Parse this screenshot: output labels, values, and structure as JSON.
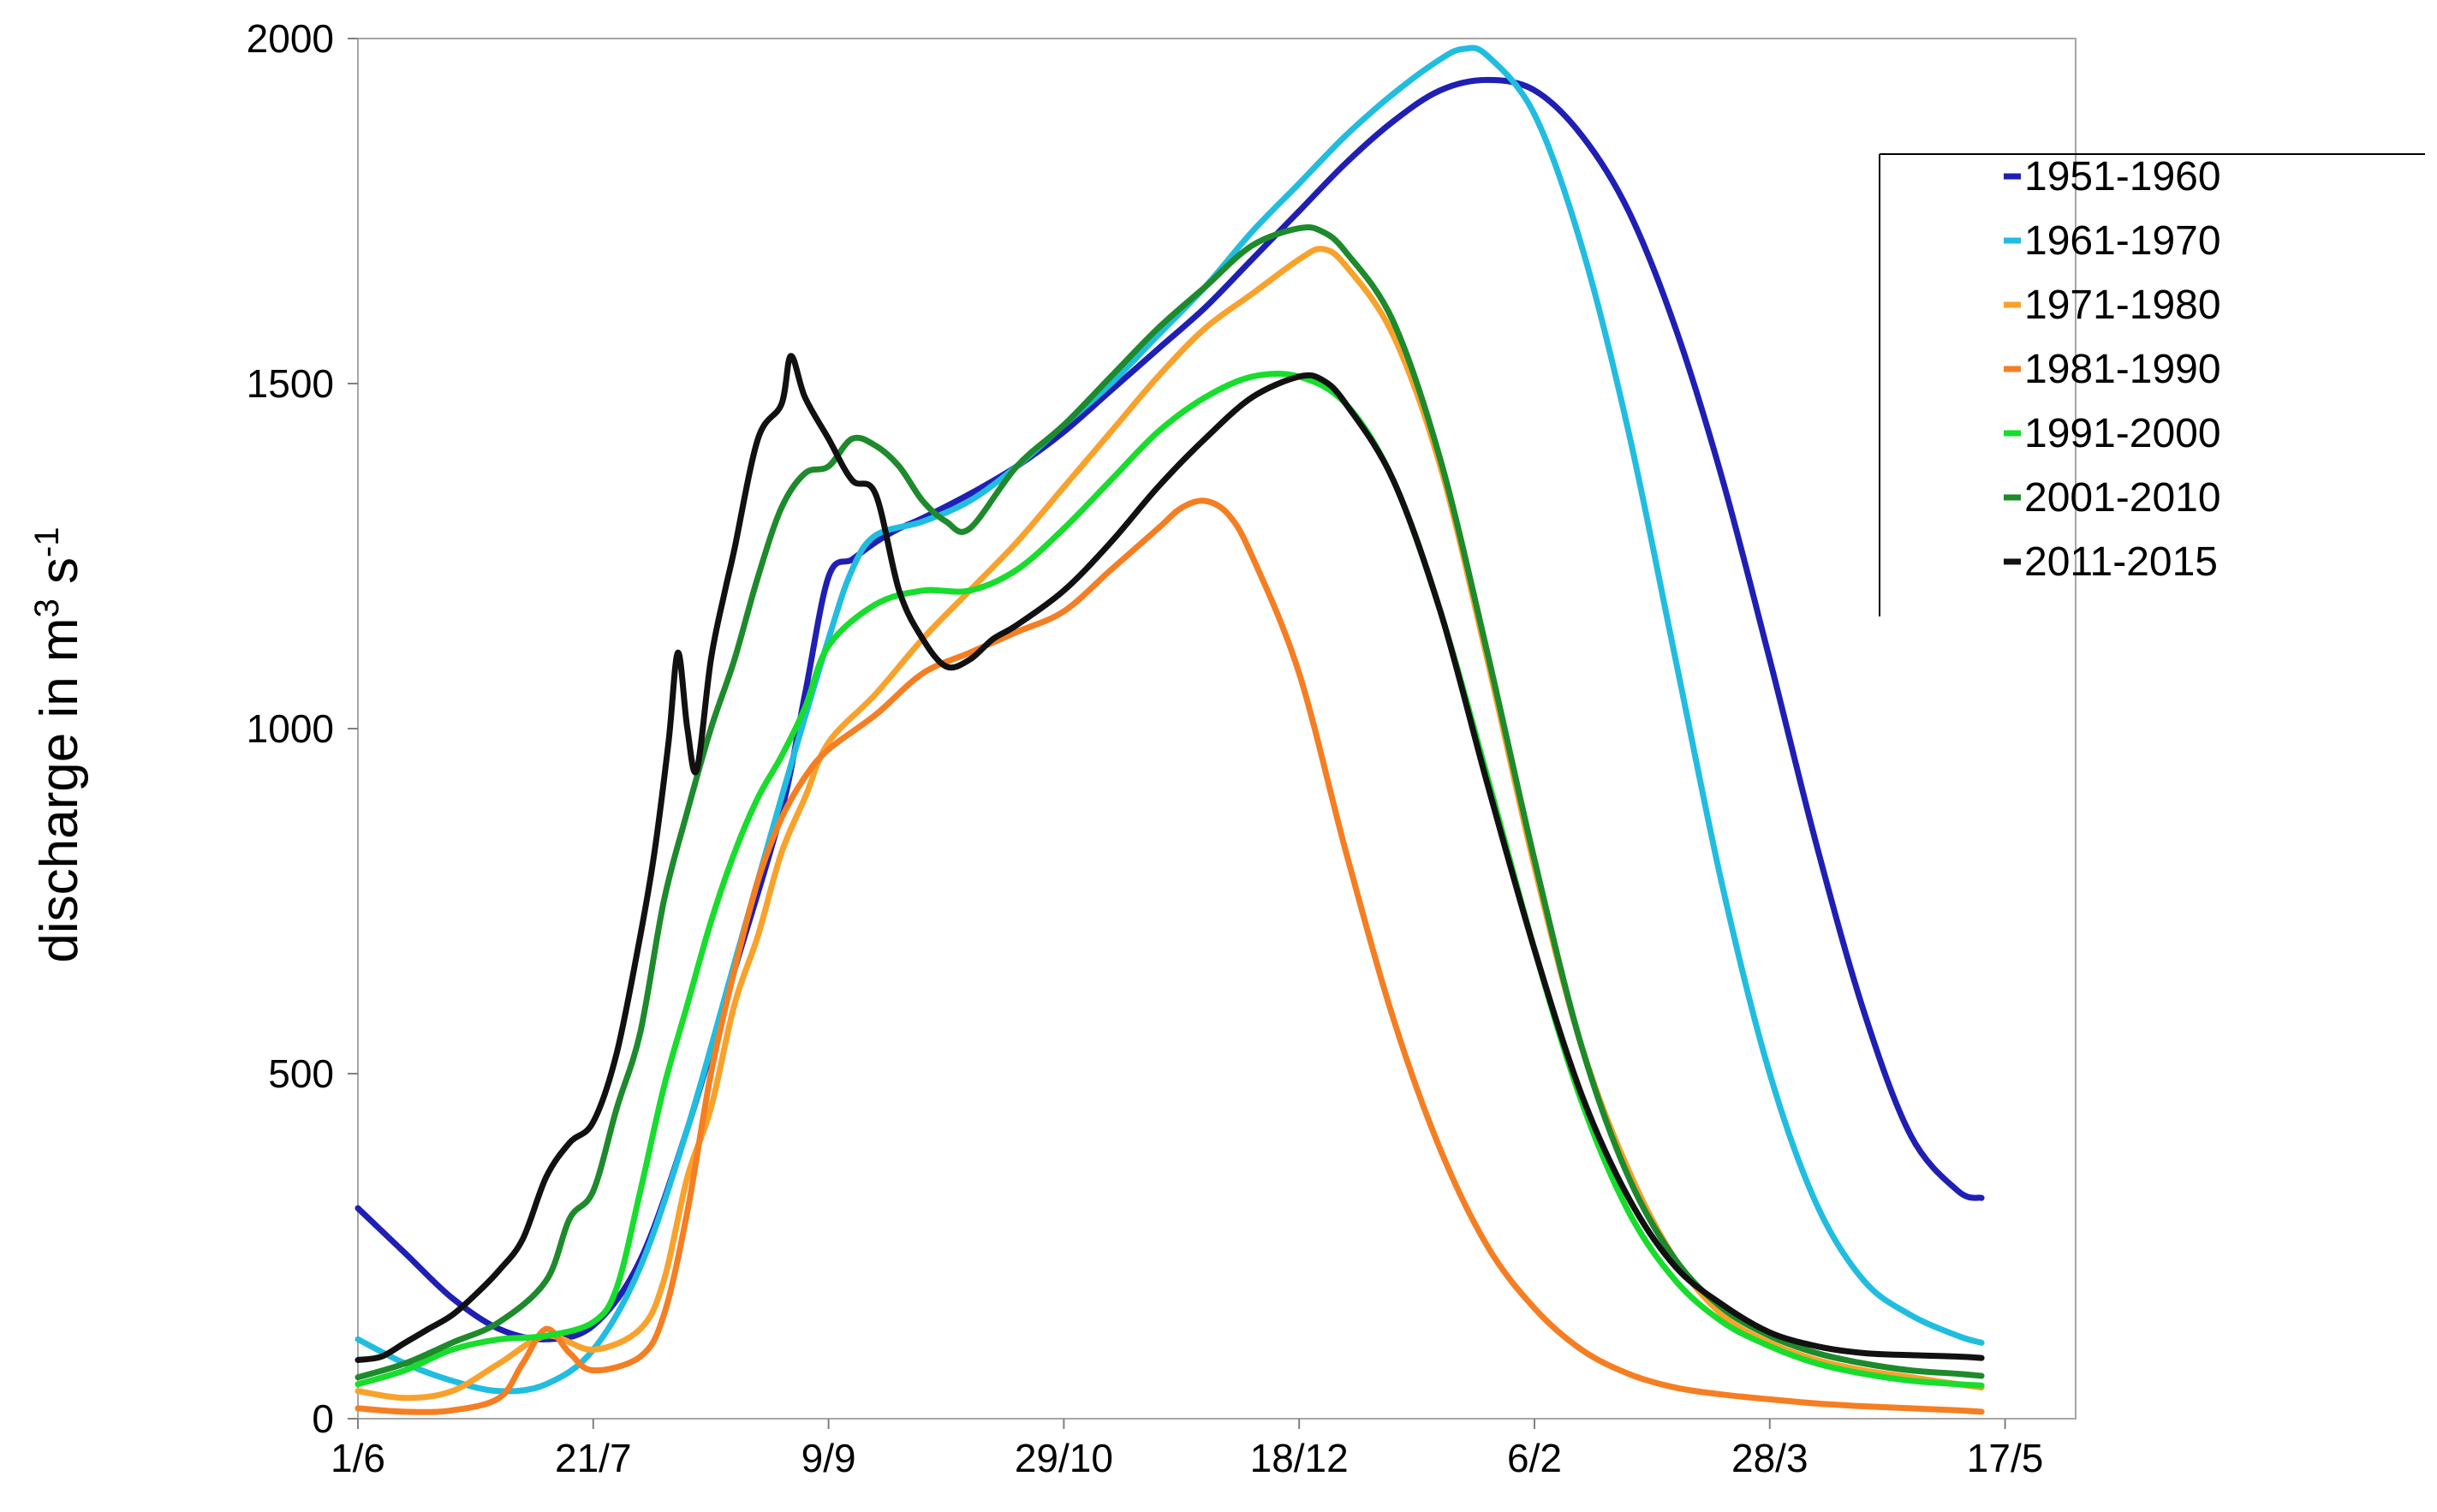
{
  "chart_data": {
    "type": "line",
    "ylabel": "discharge in m³ s⁻¹",
    "ylabel_parts": {
      "base": "discharge in m",
      "sup1": "3",
      "mid": " s",
      "sup2": "-1"
    },
    "ylim": [
      0,
      2000
    ],
    "yticks": [
      0,
      500,
      1000,
      1500,
      2000
    ],
    "ytick_labels": [
      "0",
      "500",
      "1000",
      "1500",
      "2000"
    ],
    "xlim": [
      0,
      365
    ],
    "xticks": [
      0,
      50,
      100,
      150,
      200,
      250,
      300,
      350
    ],
    "xtick_labels": [
      "1/6",
      "21/7",
      "9/9",
      "29/10",
      "18/12",
      "6/2",
      "28/3",
      "17/5"
    ],
    "grid": false,
    "legend_position": "right",
    "series": [
      {
        "name": "1951-1960",
        "color": "#1f1fb4",
        "points": [
          [
            0,
            305
          ],
          [
            10,
            240
          ],
          [
            20,
            175
          ],
          [
            30,
            130
          ],
          [
            40,
            115
          ],
          [
            50,
            135
          ],
          [
            60,
            230
          ],
          [
            70,
            420
          ],
          [
            80,
            650
          ],
          [
            90,
            880
          ],
          [
            95,
            1050
          ],
          [
            100,
            1220
          ],
          [
            105,
            1245
          ],
          [
            110,
            1270
          ],
          [
            115,
            1290
          ],
          [
            120,
            1305
          ],
          [
            130,
            1340
          ],
          [
            140,
            1380
          ],
          [
            150,
            1430
          ],
          [
            160,
            1490
          ],
          [
            170,
            1550
          ],
          [
            180,
            1610
          ],
          [
            190,
            1680
          ],
          [
            200,
            1750
          ],
          [
            210,
            1820
          ],
          [
            220,
            1880
          ],
          [
            230,
            1925
          ],
          [
            240,
            1940
          ],
          [
            250,
            1925
          ],
          [
            260,
            1860
          ],
          [
            270,
            1750
          ],
          [
            280,
            1580
          ],
          [
            290,
            1360
          ],
          [
            300,
            1100
          ],
          [
            310,
            830
          ],
          [
            320,
            590
          ],
          [
            330,
            410
          ],
          [
            340,
            330
          ],
          [
            345,
            320
          ]
        ]
      },
      {
        "name": "1961-1970",
        "color": "#21bde0",
        "points": [
          [
            0,
            115
          ],
          [
            10,
            80
          ],
          [
            20,
            55
          ],
          [
            30,
            40
          ],
          [
            40,
            50
          ],
          [
            50,
            100
          ],
          [
            60,
            220
          ],
          [
            70,
            420
          ],
          [
            80,
            660
          ],
          [
            90,
            900
          ],
          [
            100,
            1130
          ],
          [
            105,
            1230
          ],
          [
            110,
            1280
          ],
          [
            120,
            1300
          ],
          [
            130,
            1330
          ],
          [
            140,
            1380
          ],
          [
            150,
            1440
          ],
          [
            160,
            1500
          ],
          [
            170,
            1570
          ],
          [
            180,
            1640
          ],
          [
            190,
            1720
          ],
          [
            200,
            1790
          ],
          [
            210,
            1860
          ],
          [
            220,
            1920
          ],
          [
            230,
            1970
          ],
          [
            235,
            1985
          ],
          [
            240,
            1975
          ],
          [
            250,
            1890
          ],
          [
            260,
            1700
          ],
          [
            270,
            1430
          ],
          [
            280,
            1100
          ],
          [
            290,
            770
          ],
          [
            300,
            500
          ],
          [
            310,
            310
          ],
          [
            320,
            200
          ],
          [
            330,
            150
          ],
          [
            340,
            120
          ],
          [
            345,
            110
          ]
        ]
      },
      {
        "name": "1971-1980",
        "color": "#f8a22c",
        "points": [
          [
            0,
            40
          ],
          [
            10,
            30
          ],
          [
            20,
            40
          ],
          [
            30,
            80
          ],
          [
            40,
            120
          ],
          [
            50,
            100
          ],
          [
            60,
            130
          ],
          [
            65,
            200
          ],
          [
            70,
            350
          ],
          [
            75,
            450
          ],
          [
            80,
            600
          ],
          [
            85,
            700
          ],
          [
            90,
            820
          ],
          [
            95,
            900
          ],
          [
            100,
            980
          ],
          [
            110,
            1050
          ],
          [
            120,
            1130
          ],
          [
            130,
            1200
          ],
          [
            140,
            1270
          ],
          [
            150,
            1350
          ],
          [
            160,
            1430
          ],
          [
            170,
            1510
          ],
          [
            180,
            1580
          ],
          [
            190,
            1630
          ],
          [
            200,
            1680
          ],
          [
            205,
            1695
          ],
          [
            210,
            1670
          ],
          [
            220,
            1570
          ],
          [
            230,
            1380
          ],
          [
            240,
            1100
          ],
          [
            250,
            800
          ],
          [
            260,
            540
          ],
          [
            270,
            360
          ],
          [
            280,
            230
          ],
          [
            290,
            150
          ],
          [
            300,
            110
          ],
          [
            310,
            85
          ],
          [
            320,
            70
          ],
          [
            330,
            60
          ],
          [
            340,
            50
          ],
          [
            345,
            45
          ]
        ]
      },
      {
        "name": "1981-1990",
        "color": "#f57e22",
        "points": [
          [
            0,
            15
          ],
          [
            10,
            10
          ],
          [
            20,
            12
          ],
          [
            30,
            30
          ],
          [
            35,
            80
          ],
          [
            40,
            130
          ],
          [
            45,
            95
          ],
          [
            50,
            70
          ],
          [
            60,
            90
          ],
          [
            65,
            150
          ],
          [
            70,
            300
          ],
          [
            75,
            500
          ],
          [
            80,
            650
          ],
          [
            85,
            780
          ],
          [
            90,
            870
          ],
          [
            95,
            930
          ],
          [
            100,
            970
          ],
          [
            110,
            1020
          ],
          [
            120,
            1080
          ],
          [
            130,
            1110
          ],
          [
            140,
            1140
          ],
          [
            150,
            1170
          ],
          [
            160,
            1230
          ],
          [
            170,
            1290
          ],
          [
            175,
            1320
          ],
          [
            180,
            1330
          ],
          [
            185,
            1310
          ],
          [
            190,
            1250
          ],
          [
            200,
            1080
          ],
          [
            210,
            820
          ],
          [
            220,
            580
          ],
          [
            230,
            390
          ],
          [
            240,
            250
          ],
          [
            250,
            160
          ],
          [
            260,
            100
          ],
          [
            270,
            65
          ],
          [
            280,
            45
          ],
          [
            290,
            35
          ],
          [
            300,
            28
          ],
          [
            310,
            22
          ],
          [
            320,
            18
          ],
          [
            330,
            15
          ],
          [
            340,
            12
          ],
          [
            345,
            10
          ]
        ]
      },
      {
        "name": "1991-2000",
        "color": "#17dd2c",
        "points": [
          [
            0,
            50
          ],
          [
            10,
            70
          ],
          [
            20,
            100
          ],
          [
            30,
            115
          ],
          [
            40,
            120
          ],
          [
            50,
            140
          ],
          [
            55,
            190
          ],
          [
            60,
            330
          ],
          [
            65,
            480
          ],
          [
            70,
            600
          ],
          [
            75,
            720
          ],
          [
            80,
            820
          ],
          [
            85,
            900
          ],
          [
            90,
            960
          ],
          [
            95,
            1030
          ],
          [
            100,
            1120
          ],
          [
            110,
            1180
          ],
          [
            120,
            1200
          ],
          [
            130,
            1200
          ],
          [
            140,
            1230
          ],
          [
            150,
            1290
          ],
          [
            160,
            1360
          ],
          [
            170,
            1430
          ],
          [
            180,
            1480
          ],
          [
            190,
            1510
          ],
          [
            200,
            1510
          ],
          [
            210,
            1470
          ],
          [
            220,
            1360
          ],
          [
            230,
            1170
          ],
          [
            240,
            930
          ],
          [
            250,
            680
          ],
          [
            260,
            460
          ],
          [
            270,
            300
          ],
          [
            280,
            200
          ],
          [
            290,
            140
          ],
          [
            300,
            105
          ],
          [
            310,
            80
          ],
          [
            320,
            65
          ],
          [
            330,
            55
          ],
          [
            340,
            50
          ],
          [
            345,
            48
          ]
        ]
      },
      {
        "name": "2001-2010",
        "color": "#1d8a2c",
        "points": [
          [
            0,
            60
          ],
          [
            10,
            80
          ],
          [
            20,
            110
          ],
          [
            30,
            140
          ],
          [
            40,
            200
          ],
          [
            45,
            290
          ],
          [
            50,
            330
          ],
          [
            55,
            450
          ],
          [
            60,
            560
          ],
          [
            65,
            750
          ],
          [
            70,
            880
          ],
          [
            75,
            1000
          ],
          [
            80,
            1100
          ],
          [
            85,
            1220
          ],
          [
            90,
            1320
          ],
          [
            95,
            1370
          ],
          [
            100,
            1380
          ],
          [
            105,
            1420
          ],
          [
            110,
            1410
          ],
          [
            115,
            1380
          ],
          [
            120,
            1330
          ],
          [
            125,
            1300
          ],
          [
            130,
            1290
          ],
          [
            140,
            1380
          ],
          [
            150,
            1440
          ],
          [
            160,
            1510
          ],
          [
            170,
            1580
          ],
          [
            180,
            1640
          ],
          [
            190,
            1700
          ],
          [
            200,
            1725
          ],
          [
            205,
            1720
          ],
          [
            210,
            1690
          ],
          [
            220,
            1590
          ],
          [
            230,
            1390
          ],
          [
            240,
            1110
          ],
          [
            250,
            810
          ],
          [
            260,
            540
          ],
          [
            270,
            350
          ],
          [
            280,
            230
          ],
          [
            290,
            160
          ],
          [
            300,
            120
          ],
          [
            310,
            95
          ],
          [
            320,
            80
          ],
          [
            330,
            70
          ],
          [
            340,
            65
          ],
          [
            345,
            62
          ]
        ]
      },
      {
        "name": "2011-2015",
        "color": "#111111",
        "points": [
          [
            0,
            85
          ],
          [
            5,
            90
          ],
          [
            10,
            110
          ],
          [
            15,
            130
          ],
          [
            20,
            150
          ],
          [
            25,
            180
          ],
          [
            30,
            215
          ],
          [
            35,
            260
          ],
          [
            40,
            350
          ],
          [
            45,
            400
          ],
          [
            50,
            430
          ],
          [
            55,
            530
          ],
          [
            60,
            700
          ],
          [
            63,
            820
          ],
          [
            66,
            980
          ],
          [
            68,
            1110
          ],
          [
            70,
            1000
          ],
          [
            72,
            940
          ],
          [
            75,
            1100
          ],
          [
            78,
            1200
          ],
          [
            80,
            1260
          ],
          [
            85,
            1420
          ],
          [
            90,
            1470
          ],
          [
            92,
            1540
          ],
          [
            95,
            1480
          ],
          [
            100,
            1420
          ],
          [
            105,
            1360
          ],
          [
            110,
            1340
          ],
          [
            115,
            1200
          ],
          [
            120,
            1130
          ],
          [
            125,
            1090
          ],
          [
            130,
            1100
          ],
          [
            135,
            1130
          ],
          [
            140,
            1150
          ],
          [
            150,
            1200
          ],
          [
            160,
            1270
          ],
          [
            170,
            1350
          ],
          [
            180,
            1420
          ],
          [
            190,
            1480
          ],
          [
            200,
            1510
          ],
          [
            205,
            1505
          ],
          [
            210,
            1470
          ],
          [
            220,
            1360
          ],
          [
            230,
            1170
          ],
          [
            240,
            920
          ],
          [
            250,
            680
          ],
          [
            260,
            470
          ],
          [
            270,
            320
          ],
          [
            280,
            220
          ],
          [
            290,
            165
          ],
          [
            300,
            125
          ],
          [
            310,
            105
          ],
          [
            320,
            95
          ],
          [
            330,
            92
          ],
          [
            340,
            90
          ],
          [
            345,
            88
          ]
        ]
      }
    ]
  }
}
